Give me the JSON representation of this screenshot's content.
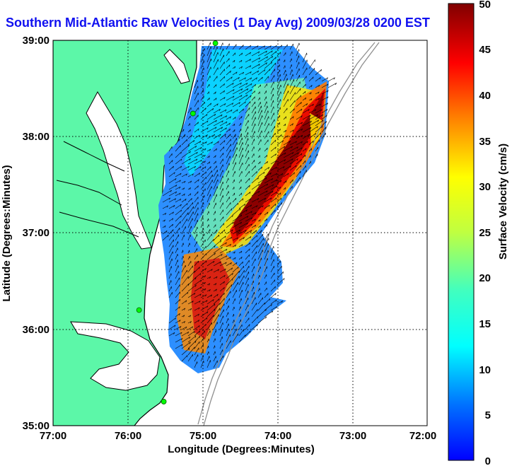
{
  "title": "Southern Mid-Atlantic Raw Velocities (1 Day Avg) 2009/03/28 0200 EST",
  "xlabel": "Longitude (Degrees:Minutes)",
  "ylabel": "Latitude (Degrees:Minutes)",
  "x_ticks": [
    "77:00",
    "76:00",
    "75:00",
    "74:00",
    "73:00",
    "72:00"
  ],
  "y_ticks": [
    "39:00",
    "38:00",
    "37:00",
    "36:00",
    "35:00"
  ],
  "colorbar": {
    "label": "Surface Velocity (cm/s)",
    "ticks": [
      "0",
      "5",
      "10",
      "15",
      "20",
      "25",
      "30",
      "35",
      "40",
      "45",
      "50"
    ],
    "range": [
      0,
      50
    ],
    "colormap": "jet"
  },
  "map": {
    "lon_range": [
      -77,
      -72
    ],
    "lat_range": [
      35,
      39
    ],
    "land_color": "#5cf7a8",
    "coastline_color": "#000000",
    "bathymetry_color": "#909090",
    "station_color": "#00ff00",
    "grid": "dotted"
  },
  "stations": [
    {
      "lon": -74.83,
      "lat": 38.97
    },
    {
      "lon": -75.13,
      "lat": 38.24
    },
    {
      "lon": -75.85,
      "lat": 36.2
    },
    {
      "lon": -75.52,
      "lat": 35.25
    }
  ]
}
